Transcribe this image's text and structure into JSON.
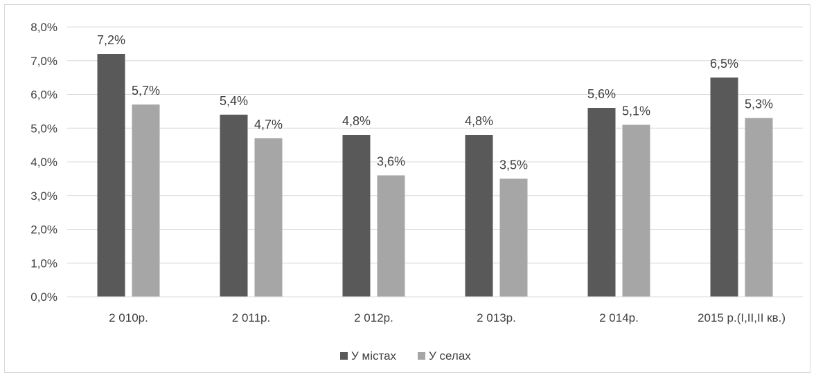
{
  "chart_data": {
    "type": "bar",
    "title": "",
    "xlabel": "",
    "ylabel": "",
    "categories": [
      "2 010р.",
      "2 011р.",
      "2 012р.",
      "2 013р.",
      "2 014р.",
      "2015 р.(I,II,II кв.)"
    ],
    "series": [
      {
        "name": "У містах",
        "values": [
          7.2,
          5.4,
          4.8,
          4.8,
          5.6,
          6.5
        ],
        "labels": [
          "7,2%",
          "5,4%",
          "4,8%",
          "4,8%",
          "5,6%",
          "6,5%"
        ],
        "color": "#595959"
      },
      {
        "name": "У селах",
        "values": [
          5.7,
          4.7,
          3.6,
          3.5,
          5.1,
          5.3
        ],
        "labels": [
          "5,7%",
          "4,7%",
          "3,6%",
          "3,5%",
          "5,1%",
          "5,3%"
        ],
        "color": "#a6a6a6"
      }
    ],
    "ylim": [
      0,
      8
    ],
    "yticks": [
      0,
      1,
      2,
      3,
      4,
      5,
      6,
      7,
      8
    ],
    "ytick_labels": [
      "0,0%",
      "1,0%",
      "2,0%",
      "3,0%",
      "4,0%",
      "5,0%",
      "6,0%",
      "7,0%",
      "8,0%"
    ],
    "grid": true,
    "legend_position": "bottom"
  }
}
